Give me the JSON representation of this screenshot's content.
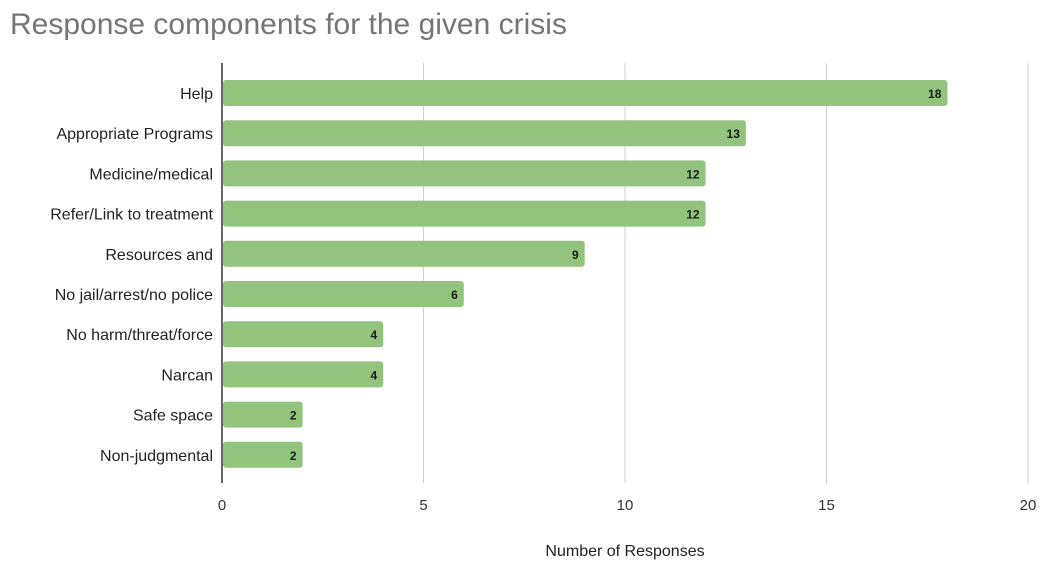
{
  "chart_data": {
    "type": "bar",
    "orientation": "horizontal",
    "title": "Response components for the given crisis",
    "xlabel": "Number of Responses",
    "ylabel": "",
    "categories": [
      "Help",
      "Appropriate Programs",
      "Medicine/medical",
      "Refer/Link to treatment",
      "Resources and",
      "No jail/arrest/no police",
      "No harm/threat/force",
      "Narcan",
      "Safe space",
      "Non-judgmental"
    ],
    "values": [
      18,
      13,
      12,
      12,
      9,
      6,
      4,
      4,
      2,
      2
    ],
    "xlim": [
      0,
      20
    ],
    "xticks": [
      0,
      5,
      10,
      15,
      20
    ],
    "grid": true,
    "data_labels": true,
    "legend": "none",
    "bar_color": "#93c47d"
  }
}
